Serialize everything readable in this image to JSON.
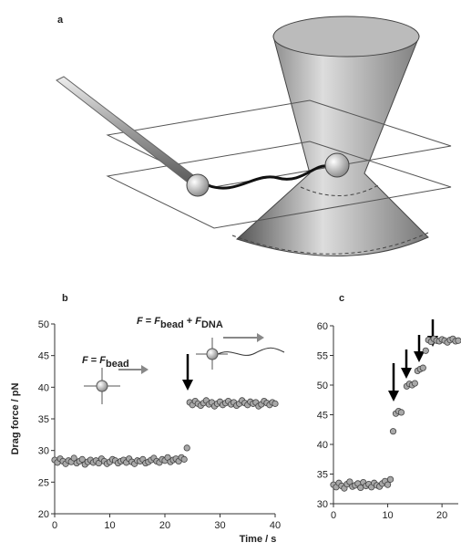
{
  "diagram": {
    "label": "a"
  },
  "figure": {
    "xlabel": "Time / s"
  },
  "chart_data": [
    {
      "type": "scatter",
      "label": "b",
      "ylabel": "Drag force / pN",
      "color": "#a8a8a8",
      "xlim": [
        0,
        40
      ],
      "xticks": [
        0,
        10,
        20,
        30,
        40
      ],
      "ylim": [
        20,
        50
      ],
      "yticks": [
        20,
        25,
        30,
        35,
        40,
        45,
        50
      ],
      "annotations": [
        {
          "parts": [
            {
              "t": "F",
              "style": "italic"
            },
            {
              "t": " = "
            },
            {
              "t": "F",
              "style": "italic"
            },
            {
              "t": "bead",
              "sub": true
            }
          ]
        },
        {
          "parts": [
            {
              "t": "F",
              "style": "italic"
            },
            {
              "t": " = "
            },
            {
              "t": "F",
              "style": "italic"
            },
            {
              "t": "bead",
              "sub": true
            },
            {
              "t": " + "
            },
            {
              "t": "F",
              "style": "italic"
            },
            {
              "t": "DNA",
              "sub": true
            }
          ]
        }
      ],
      "x": [
        0,
        0.5,
        1,
        1.5,
        2,
        2.5,
        3,
        3.5,
        4,
        4.5,
        5,
        5.5,
        6,
        6.5,
        7,
        7.5,
        8,
        8.5,
        9,
        9.5,
        10,
        10.5,
        11,
        11.5,
        12,
        12.5,
        13,
        13.5,
        14,
        14.5,
        15,
        15.5,
        16,
        16.5,
        17,
        17.5,
        18,
        18.5,
        19,
        19.5,
        20,
        20.5,
        21,
        21.5,
        22,
        22.5,
        23,
        23.5,
        24,
        24.5,
        25,
        25.5,
        26,
        26.5,
        27,
        27.5,
        28,
        28.5,
        29,
        29.5,
        30,
        30.5,
        31,
        31.5,
        32,
        32.5,
        33,
        33.5,
        34,
        34.5,
        35,
        35.5,
        36,
        36.5,
        37,
        37.5,
        38,
        38.5,
        39,
        39.5,
        40
      ],
      "values": [
        28.5,
        28.1,
        28.7,
        28.3,
        27.9,
        28.4,
        28.2,
        28.8,
        28.0,
        28.3,
        28.6,
        27.8,
        28.2,
        28.5,
        28.1,
        28.4,
        28.0,
        28.7,
        28.3,
        27.9,
        28.2,
        28.6,
        28.4,
        28.0,
        28.3,
        28.5,
        28.1,
        28.7,
        28.2,
        27.9,
        28.4,
        28.3,
        28.6,
        28.0,
        28.2,
        28.5,
        28.8,
        28.3,
        28.1,
        28.6,
        28.4,
        28.9,
        28.2,
        28.5,
        28.7,
        28.3,
        28.9,
        28.6,
        30.4,
        37.6,
        37.2,
        37.8,
        37.4,
        37.1,
        37.5,
        37.9,
        37.3,
        37.6,
        37.0,
        37.4,
        37.7,
        37.2,
        37.5,
        37.8,
        37.3,
        37.6,
        37.1,
        37.4,
        37.9,
        37.5,
        37.2,
        37.7,
        37.4,
        37.6,
        37.0,
        37.3,
        37.8,
        37.5,
        37.2,
        37.6,
        37.4
      ]
    },
    {
      "type": "scatter",
      "label": "c",
      "color": "#a8a8a8",
      "xlim": [
        0,
        23
      ],
      "xticks": [
        0,
        10,
        20
      ],
      "ylim": [
        30,
        60
      ],
      "yticks": [
        30,
        35,
        40,
        45,
        50,
        55,
        60
      ],
      "x": [
        0,
        0.5,
        1,
        1.5,
        2,
        2.5,
        3,
        3.5,
        4,
        4.5,
        5,
        5.5,
        6,
        6.5,
        7,
        7.5,
        8,
        8.5,
        9,
        9.5,
        10,
        10.5,
        11,
        11.5,
        12,
        12.5,
        13.5,
        14,
        14.5,
        15,
        15.5,
        16,
        16.5,
        17,
        17.5,
        18,
        18.5,
        19,
        19.5,
        20,
        20.5,
        21,
        21.5,
        22,
        22.5,
        23
      ],
      "values": [
        33.2,
        32.8,
        33.5,
        33.0,
        32.6,
        33.3,
        33.7,
        32.9,
        33.1,
        33.4,
        32.7,
        33.6,
        33.0,
        33.3,
        32.8,
        33.5,
        33.1,
        32.9,
        33.4,
        33.8,
        33.2,
        34.1,
        42.2,
        45.2,
        45.6,
        45.4,
        49.8,
        50.2,
        50.0,
        50.3,
        52.4,
        52.7,
        52.9,
        55.8,
        57.6,
        57.3,
        57.8,
        57.5,
        57.4,
        57.7,
        57.5,
        57.2,
        57.6,
        57.8,
        57.4,
        57.5
      ]
    }
  ]
}
